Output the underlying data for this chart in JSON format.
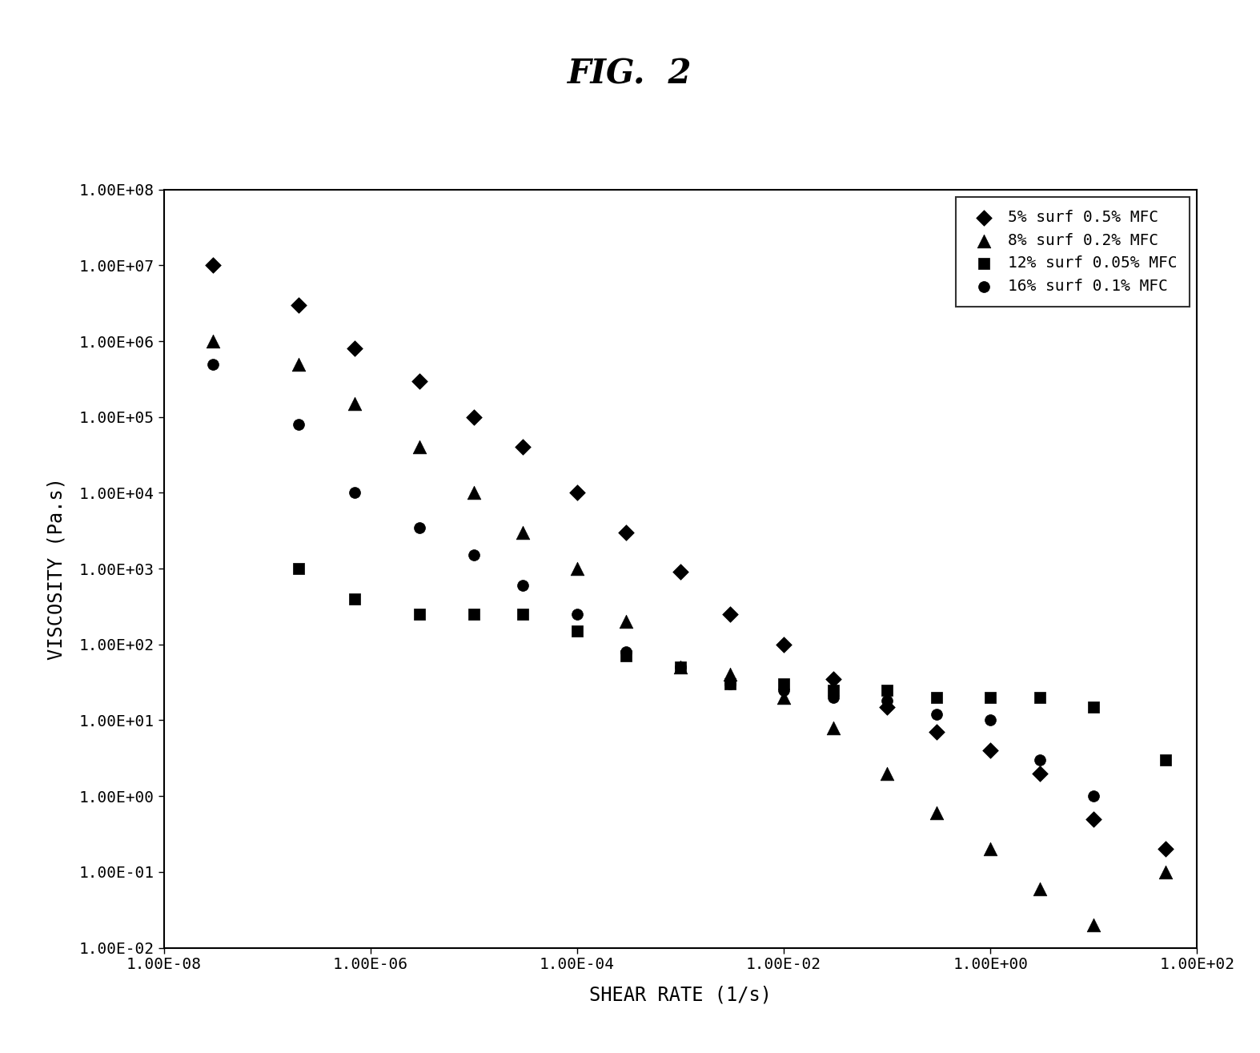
{
  "title": "FIG.  2",
  "xlabel": "SHEAR RATE (1/s)",
  "ylabel": "VISCOSITY (Pa.s)",
  "xlim_log": [
    -8,
    2
  ],
  "ylim_log": [
    -2,
    8
  ],
  "series": [
    {
      "label": "5% surf 0.5% MFC",
      "marker": "D",
      "color": "black",
      "markersize": 11,
      "x": [
        3e-08,
        2e-07,
        7e-07,
        3e-06,
        1e-05,
        3e-05,
        0.0001,
        0.0003,
        0.001,
        0.003,
        0.01,
        0.03,
        0.1,
        0.3,
        1.0,
        3.0,
        10.0,
        50.0
      ],
      "y": [
        10000000.0,
        3000000.0,
        800000.0,
        300000.0,
        100000.0,
        40000.0,
        10000.0,
        3000.0,
        900.0,
        250.0,
        100.0,
        35.0,
        15.0,
        7.0,
        4.0,
        2.0,
        0.5,
        0.2
      ]
    },
    {
      "label": "8% surf 0.2% MFC",
      "marker": "^",
      "color": "black",
      "markersize": 12,
      "x": [
        3e-08,
        2e-07,
        7e-07,
        3e-06,
        1e-05,
        3e-05,
        0.0001,
        0.0003,
        0.001,
        0.003,
        0.01,
        0.03,
        0.1,
        0.3,
        1.0,
        3.0,
        10.0,
        50.0
      ],
      "y": [
        1000000.0,
        500000.0,
        150000.0,
        40000.0,
        10000.0,
        3000.0,
        1000.0,
        200.0,
        50.0,
        40.0,
        20.0,
        8.0,
        2.0,
        0.6,
        0.2,
        0.06,
        0.02,
        0.1
      ]
    },
    {
      "label": "12% surf 0.05% MFC",
      "marker": "s",
      "color": "black",
      "markersize": 11,
      "x": [
        2e-07,
        7e-07,
        3e-06,
        1e-05,
        3e-05,
        0.0001,
        0.0003,
        0.001,
        0.003,
        0.01,
        0.03,
        0.1,
        0.3,
        1.0,
        3.0,
        10.0,
        50.0
      ],
      "y": [
        1000.0,
        400.0,
        250.0,
        250.0,
        250.0,
        150.0,
        70.0,
        50.0,
        30.0,
        30.0,
        25.0,
        25.0,
        20.0,
        20.0,
        20.0,
        15.0,
        3.0
      ]
    },
    {
      "label": "16% surf 0.1% MFC",
      "marker": "o",
      "color": "black",
      "markersize": 11,
      "x": [
        3e-08,
        2e-07,
        7e-07,
        3e-06,
        1e-05,
        3e-05,
        0.0001,
        0.0003,
        0.001,
        0.003,
        0.01,
        0.03,
        0.1,
        0.3,
        1.0,
        3.0,
        10.0
      ],
      "y": [
        500000.0,
        80000.0,
        10000.0,
        3500.0,
        1500.0,
        600.0,
        250.0,
        80.0,
        50.0,
        30.0,
        25.0,
        20.0,
        18.0,
        12.0,
        10.0,
        3.0,
        1.0
      ]
    }
  ],
  "xticks": [
    1e-08,
    1e-06,
    0.0001,
    0.01,
    1.0,
    100.0
  ],
  "yticks": [
    0.01,
    0.1,
    1.0,
    10.0,
    100.0,
    1000.0,
    10000.0,
    100000.0,
    1000000.0,
    10000000.0,
    100000000.0
  ],
  "xtick_labels": [
    "1.00E-08",
    "1.00E-06",
    "1.00E-04",
    "1.00E-02",
    "1.00E+00",
    "1.00E+02"
  ],
  "ytick_labels": [
    "1.00E-02",
    "1.00E-01",
    "1.00E+00",
    "1.00E+01",
    "1.00E+02",
    "1.00E+03",
    "1.00E+04",
    "1.00E+05",
    "1.00E+06",
    "1.00E+07",
    "1.00E+08"
  ],
  "legend_loc": "upper right",
  "bg_color": "white",
  "font_family": "DejaVu Sans Mono"
}
